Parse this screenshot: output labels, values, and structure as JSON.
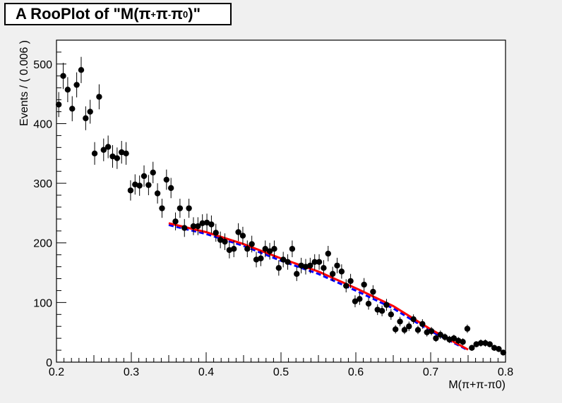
{
  "title": {
    "prefix": "A RooPlot of \"M(π",
    "sup1": "+",
    "mid1": "π",
    "sup2": "-",
    "mid2": "π",
    "sup3": "0",
    "suffix": ")\""
  },
  "chart_data": {
    "type": "scatter",
    "title": "A RooPlot of \"M(π+π-π0)\"",
    "xlabel": "M(π+π-π0)",
    "ylabel": "Events / ( 0.006 )",
    "xlim": [
      0.2,
      0.8
    ],
    "ylim": [
      0,
      540
    ],
    "x_ticks": [
      "0.2",
      "0.3",
      "0.4",
      "0.5",
      "0.6",
      "0.7",
      "0.8"
    ],
    "y_ticks": [
      "0",
      "100",
      "200",
      "300",
      "400",
      "500"
    ],
    "grid": false,
    "legend": "none",
    "series": [
      {
        "kind": "points-with-errors",
        "color": "#000000",
        "x": [
          0.203,
          0.209,
          0.215,
          0.221,
          0.227,
          0.233,
          0.239,
          0.245,
          0.251,
          0.257,
          0.263,
          0.269,
          0.275,
          0.281,
          0.287,
          0.293,
          0.299,
          0.305,
          0.311,
          0.317,
          0.323,
          0.329,
          0.335,
          0.341,
          0.347,
          0.353,
          0.359,
          0.365,
          0.371,
          0.377,
          0.383,
          0.389,
          0.395,
          0.401,
          0.407,
          0.413,
          0.419,
          0.425,
          0.431,
          0.437,
          0.443,
          0.449,
          0.455,
          0.461,
          0.467,
          0.473,
          0.479,
          0.485,
          0.491,
          0.497,
          0.503,
          0.509,
          0.515,
          0.521,
          0.527,
          0.533,
          0.539,
          0.545,
          0.551,
          0.557,
          0.563,
          0.569,
          0.575,
          0.581,
          0.587,
          0.593,
          0.599,
          0.605,
          0.611,
          0.617,
          0.623,
          0.629,
          0.635,
          0.641,
          0.647,
          0.653,
          0.659,
          0.665,
          0.671,
          0.677,
          0.683,
          0.689,
          0.695,
          0.701,
          0.707,
          0.713,
          0.719,
          0.725,
          0.731,
          0.737,
          0.743,
          0.749,
          0.755,
          0.761,
          0.767,
          0.773,
          0.779,
          0.785,
          0.791,
          0.797
        ],
        "y": [
          432,
          480,
          457,
          425,
          465,
          490,
          409,
          420,
          350,
          445,
          356,
          361,
          345,
          342,
          352,
          350,
          288,
          298,
          296,
          312,
          297,
          318,
          283,
          258,
          306,
          292,
          236,
          258,
          225,
          258,
          228,
          228,
          233,
          234,
          231,
          217,
          205,
          202,
          188,
          190,
          218,
          212,
          190,
          198,
          172,
          174,
          190,
          186,
          190,
          158,
          172,
          168,
          190,
          148,
          162,
          160,
          162,
          168,
          168,
          158,
          182,
          148,
          162,
          152,
          128,
          136,
          102,
          106,
          130,
          98,
          118,
          88,
          86,
          96,
          80,
          55,
          68,
          54,
          60,
          72,
          54,
          64,
          50,
          52,
          40,
          46,
          42,
          38,
          40,
          36,
          34,
          56,
          24,
          30,
          32,
          32,
          30,
          24,
          22,
          16
        ],
        "yerr": [
          21,
          22,
          21,
          21,
          21,
          22,
          20,
          20,
          19,
          21,
          19,
          19,
          19,
          18,
          19,
          19,
          17,
          17,
          17,
          18,
          17,
          18,
          17,
          16,
          17,
          17,
          15,
          16,
          15,
          16,
          15,
          15,
          15,
          15,
          15,
          15,
          14,
          14,
          14,
          14,
          15,
          15,
          14,
          14,
          13,
          13,
          14,
          14,
          14,
          13,
          13,
          13,
          14,
          12,
          13,
          13,
          13,
          13,
          13,
          13,
          13,
          12,
          13,
          12,
          11,
          12,
          10,
          10,
          11,
          10,
          11,
          9,
          9,
          10,
          9,
          7,
          8,
          7,
          8,
          8,
          7,
          8,
          7,
          7,
          6,
          7,
          6,
          6,
          6,
          6,
          6,
          7,
          5,
          5,
          6,
          6,
          5,
          5,
          5,
          4
        ]
      },
      {
        "kind": "curve",
        "color": "#0000ff",
        "style": "dashed",
        "x": [
          0.35,
          0.4,
          0.45,
          0.5,
          0.55,
          0.6,
          0.65,
          0.7,
          0.75
        ],
        "y": [
          230,
          215,
          195,
          170,
          148,
          120,
          90,
          52,
          20
        ]
      },
      {
        "kind": "curve",
        "color": "#ff0000",
        "style": "solid",
        "x": [
          0.35,
          0.4,
          0.45,
          0.5,
          0.55,
          0.6,
          0.65,
          0.7,
          0.75
        ],
        "y": [
          233,
          218,
          198,
          174,
          152,
          124,
          94,
          55,
          21
        ]
      }
    ]
  }
}
